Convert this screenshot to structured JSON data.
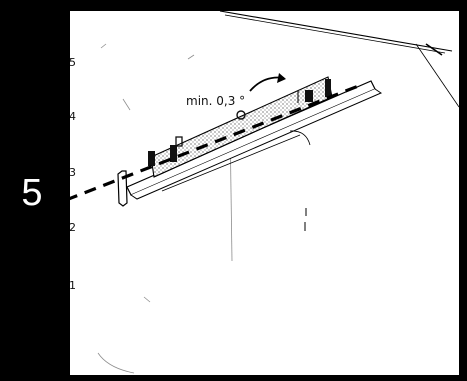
{
  "step": {
    "number": "5"
  },
  "diagram": {
    "angle_label": "min. 0,3 °",
    "level_marks": [
      "5",
      "4",
      "3",
      "2",
      "1"
    ],
    "colors": {
      "frame": "#000000",
      "step_text": "#ffffff",
      "line": "#000000",
      "hatch": "#a9a9a9"
    },
    "icons": {
      "rotation_arrow": "curved-arrow-icon",
      "spirit_level": "spirit-level-icon"
    }
  }
}
